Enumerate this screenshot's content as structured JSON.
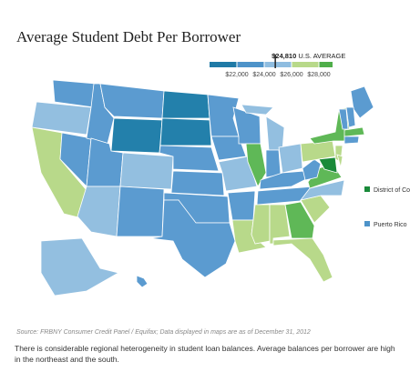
{
  "chart_data": {
    "type": "choropleth",
    "title": "Average Student Debt Per Borrower",
    "legend": {
      "xlim": [
        20000,
        29000
      ],
      "ticks": [
        {
          "value": 22000,
          "label": "$22,000"
        },
        {
          "value": 24000,
          "label": "$24,000"
        },
        {
          "value": 26000,
          "label": "$26,000"
        },
        {
          "value": 28000,
          "label": "$28,000"
        }
      ],
      "colors": [
        "#1f7aa6",
        "#4d93c9",
        "#8fbde0",
        "#b8d98a",
        "#4fae4a"
      ],
      "average": {
        "value": 24810,
        "label": "$24,810",
        "text": "U.S. AVERAGE"
      }
    },
    "regions": [
      {
        "color": "#5b9bd0"
      },
      {
        "color": "#93bfe0"
      },
      {
        "color": "#b8d98a"
      },
      {
        "color": "#5b9bd0"
      },
      {
        "color": "#5b9bd0"
      },
      {
        "color": "#5b9bd0"
      },
      {
        "color": "#2380ab"
      },
      {
        "color": "#5b9bd0"
      },
      {
        "color": "#93bfe0"
      },
      {
        "color": "#93bfe0"
      },
      {
        "color": "#5b9bd0"
      },
      {
        "color": "#2380ab"
      },
      {
        "color": "#2380ab"
      },
      {
        "color": "#5b9bd0"
      },
      {
        "color": "#5b9bd0"
      },
      {
        "color": "#5b9bd0"
      },
      {
        "color": "#5b9bd0"
      },
      {
        "color": "#5b9bd0"
      },
      {
        "color": "#5b9bd0"
      },
      {
        "color": "#93bfe0"
      },
      {
        "color": "#5b9bd0"
      },
      {
        "color": "#b8d98a"
      },
      {
        "color": "#5b9bd0"
      },
      {
        "color": "#5fb857"
      },
      {
        "color": "#93bfe0"
      },
      {
        "color": "#5b9bd0"
      },
      {
        "color": "#93bfe0"
      },
      {
        "color": "#5b9bd0"
      },
      {
        "color": "#5b9bd0"
      },
      {
        "color": "#b8d98a"
      },
      {
        "color": "#b8d98a"
      },
      {
        "color": "#5fb857"
      },
      {
        "color": "#b8d98a"
      },
      {
        "color": "#b8d98a"
      },
      {
        "color": "#93bfe0"
      },
      {
        "color": "#5fb857"
      },
      {
        "color": "#5b9bd0"
      },
      {
        "color": "#b8d98a"
      },
      {
        "color": "#5fb857"
      },
      {
        "color": "#5b9bd0"
      },
      {
        "color": "#5b9bd0"
      },
      {
        "color": "#5b9bd0"
      },
      {
        "color": "#5fb857"
      },
      {
        "color": "#5b9bd0"
      },
      {
        "color": "#b8d98a"
      },
      {
        "color": "#1a8a3a"
      },
      {
        "color": "#b8d98a"
      },
      {
        "color": "#93bfe0"
      },
      {
        "color": "#5b9bd0"
      }
    ],
    "insets": [
      {
        "label": "District of Columbia",
        "color": "#1a8a3a"
      },
      {
        "label": "Puerto Rico",
        "color": "#4d93c9"
      }
    ],
    "source": "Source: FRBNY Consumer Credit Panel / Equifax; Data displayed in maps are as of December 31, 2012",
    "caption": "There is considerable regional heterogeneity in student loan balances. Average balances per borrower are high in the northeast and the south."
  }
}
